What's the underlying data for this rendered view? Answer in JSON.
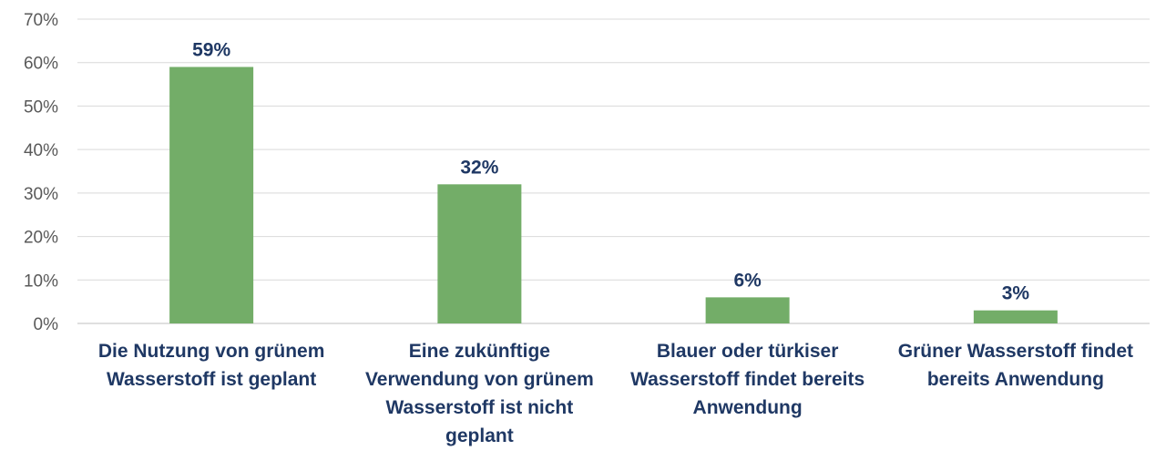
{
  "chart_data": {
    "type": "bar",
    "categories": [
      [
        "Die Nutzung von grünem",
        "Wasserstoff ist geplant"
      ],
      [
        "Eine zukünftige",
        "Verwendung von grünem",
        "Wasserstoff ist nicht",
        "geplant"
      ],
      [
        "Blauer oder türkiser",
        "Wasserstoff findet bereits",
        "Anwendung"
      ],
      [
        "Grüner Wasserstoff findet",
        "bereits Anwendung"
      ]
    ],
    "values": [
      59,
      32,
      6,
      3
    ],
    "data_labels": [
      "59%",
      "32%",
      "6%",
      "3%"
    ],
    "ylim": [
      0,
      70
    ],
    "yticks": [
      "0%",
      "10%",
      "20%",
      "30%",
      "40%",
      "50%",
      "60%",
      "70%"
    ],
    "bar_color": "#73ad68",
    "label_color": "#1f3864",
    "grid": true
  }
}
